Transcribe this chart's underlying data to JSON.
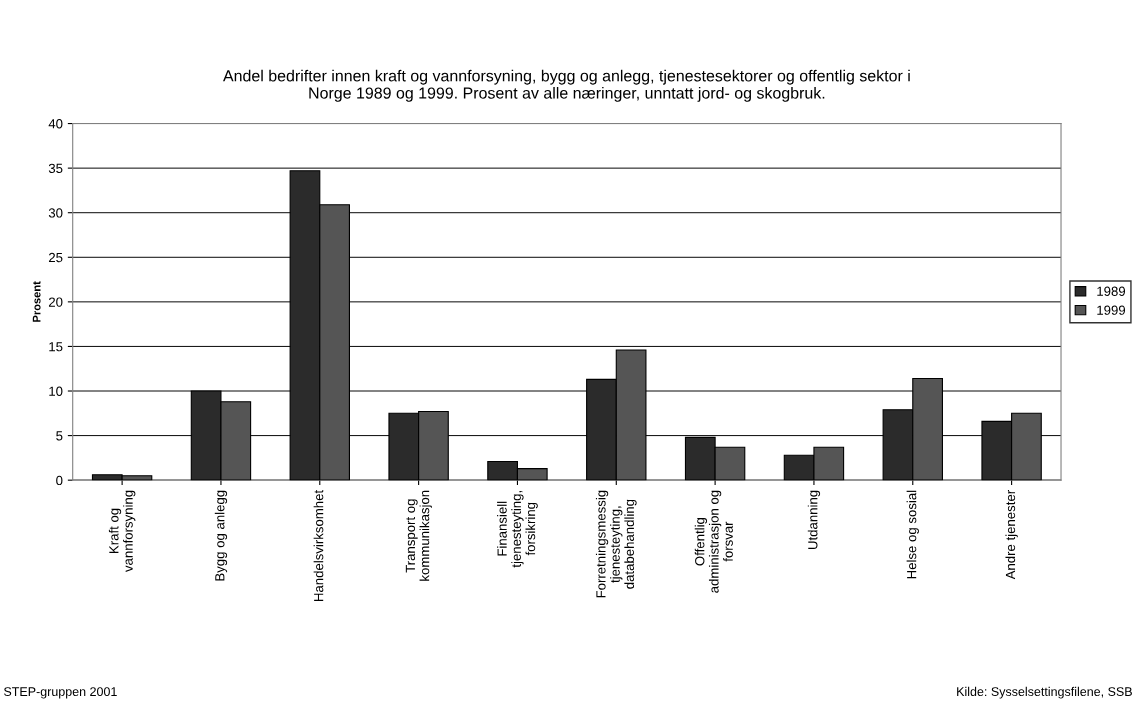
{
  "chart_data": {
    "type": "bar",
    "title": "Andel bedrifter innen kraft og vannforsyning, bygg og anlegg, tjenestesektorer og offentlig sektor i\nNorge 1989 og 1999. Prosent av alle næringer, unntatt jord- og skogbruk.",
    "ylabel": "Prosent",
    "categories": [
      "Kraft og\nvannforsyning",
      "Bygg og anlegg",
      "Handelsvirksomhet",
      "Transport og\nkommunikasjon",
      "Finansiell\ntjenesteyting,\nforsikring",
      "Forretningsmessig\ntjenesteyting,\ndatabehandling",
      "Offentlig\nadministrasjon og\nforsvar",
      "Utdanning",
      "Helse og sosial",
      "Andre tjenester"
    ],
    "series": [
      {
        "name": "1989",
        "color": "#2b2b2b",
        "values": [
          0.6,
          10.0,
          34.7,
          7.5,
          2.1,
          11.3,
          4.8,
          2.8,
          7.9,
          6.6
        ]
      },
      {
        "name": "1999",
        "color": "#555555",
        "values": [
          0.5,
          8.8,
          30.9,
          7.7,
          1.3,
          14.6,
          3.7,
          3.7,
          11.4,
          7.5
        ]
      }
    ],
    "ylim": [
      0,
      40
    ],
    "yticks": [
      0,
      5,
      10,
      15,
      20,
      25,
      30,
      35,
      40
    ],
    "grid": "y",
    "legend": "right",
    "annotations": [
      "STEP-gruppen 2001",
      "Kilde: Sysselsettingsfilene, SSB"
    ]
  }
}
